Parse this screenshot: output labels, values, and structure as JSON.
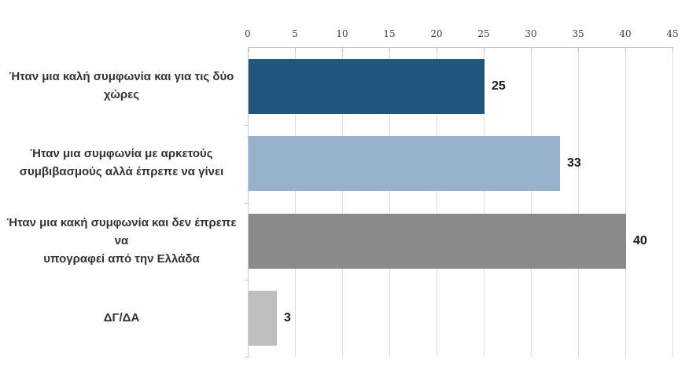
{
  "chart_data": {
    "type": "bar",
    "orientation": "horizontal",
    "title": "",
    "xlabel": "",
    "ylabel": "",
    "categories": [
      "Ήταν μια καλή συμφωνία και για τις δύο\nχώρες",
      "Ήταν μια συμφωνία με αρκετούς\nσυμβιβασμούς αλλά έπρεπε να γίνει",
      "Ήταν μια κακή συμφωνία και δεν έπρεπε να\nυπογραφεί από την Ελλάδα",
      "ΔΓ/ΔΑ"
    ],
    "values": [
      25,
      33,
      40,
      3
    ],
    "value_labels": [
      "25",
      "33",
      "40",
      "3"
    ],
    "bar_colors": [
      "#21567f",
      "#96b2cd",
      "#8a8a8a",
      "#bfbfbf"
    ],
    "xlim": [
      0,
      45
    ],
    "x_ticks": [
      0,
      5,
      10,
      15,
      20,
      25,
      30,
      35,
      40,
      45
    ],
    "axis_position": "top",
    "grid": "vertical",
    "legend": "none"
  },
  "colors": {
    "background": "#ffffff",
    "gridline": "#dcdcdc",
    "axis_line": "#c4c4c4",
    "tick_mark": "#bdbdbd",
    "tick_label_text": "#3c3c3c",
    "category_label_text": "#333333",
    "value_label_text": "#1a1a1a"
  }
}
